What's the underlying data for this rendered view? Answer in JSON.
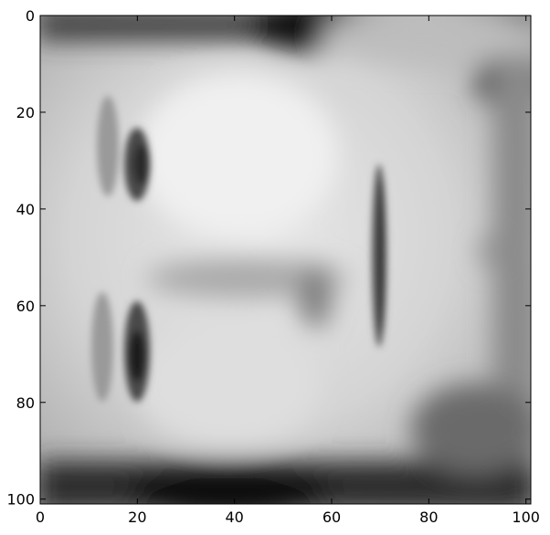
{
  "image": {
    "subject": "grayscale face image",
    "colormap": "gray"
  },
  "axes": {
    "xlim": [
      0,
      101
    ],
    "ylim": [
      101,
      0
    ],
    "x_ticks": [
      "0",
      "20",
      "40",
      "60",
      "80",
      "100"
    ],
    "y_ticks": [
      "0",
      "20",
      "40",
      "60",
      "80",
      "100"
    ],
    "y_inverted": true
  }
}
